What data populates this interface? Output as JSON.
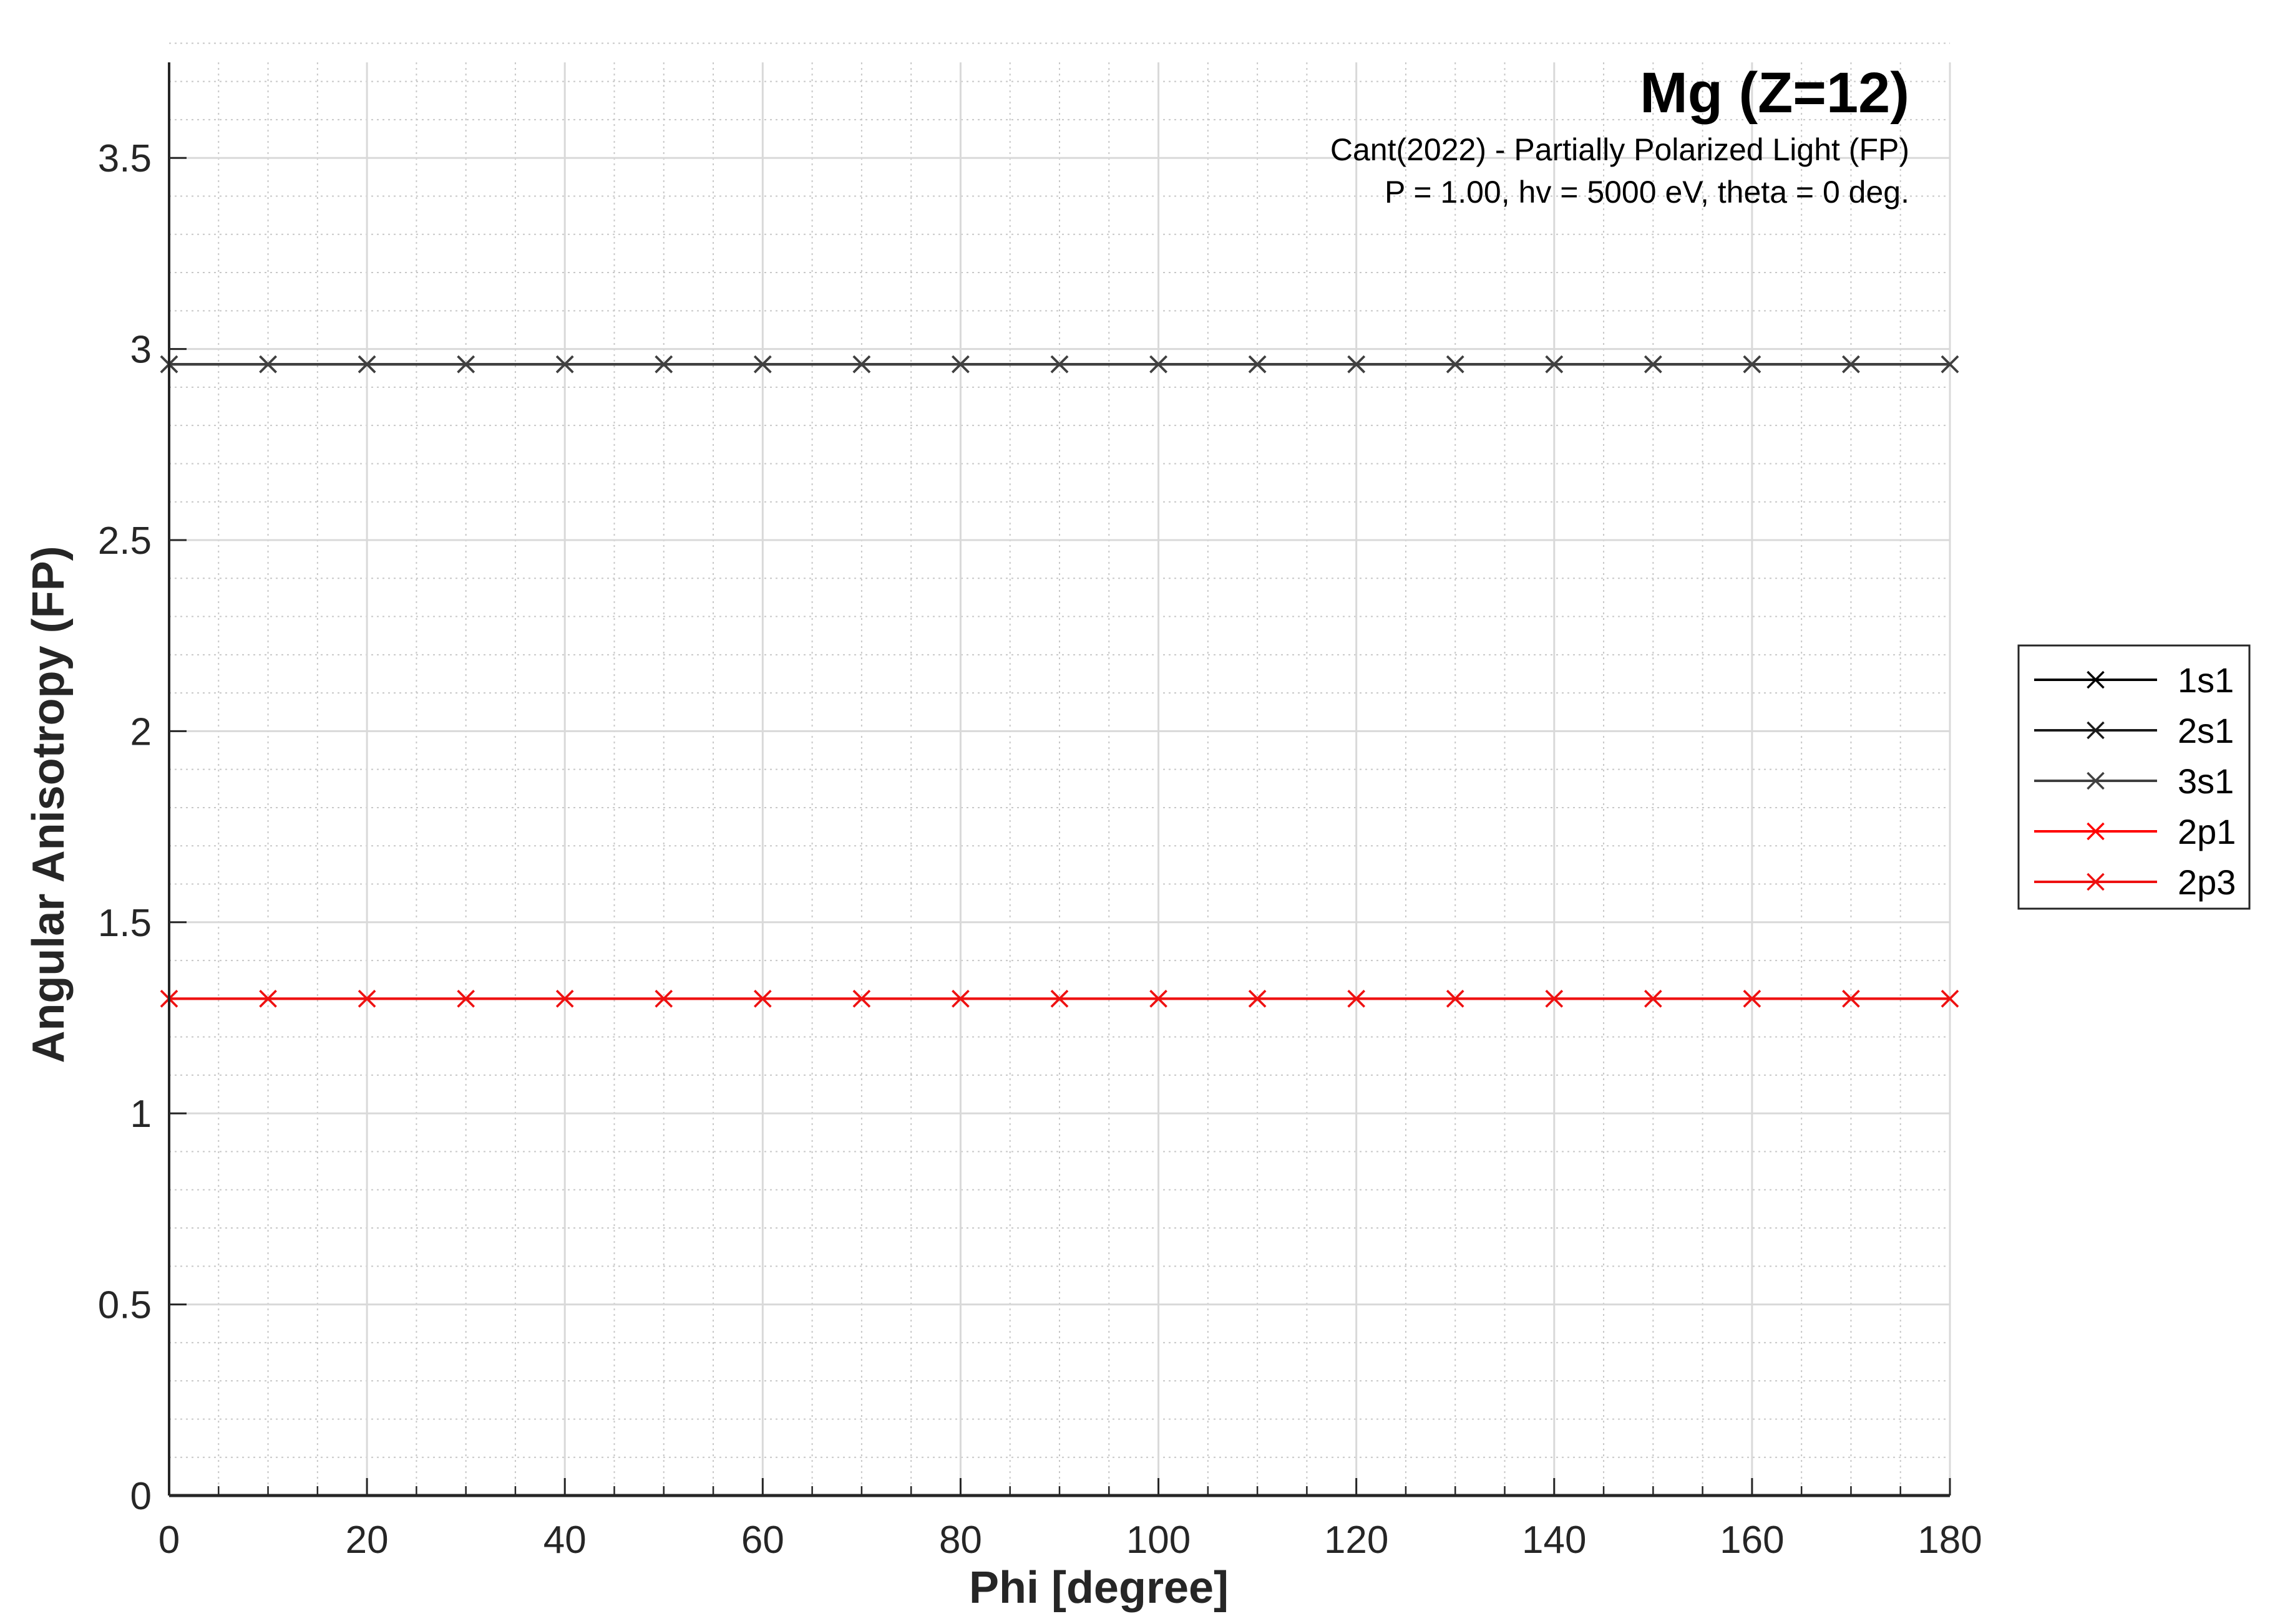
{
  "chart_data": {
    "type": "line",
    "title": "Mg (Z=12)",
    "subtitle_lines": [
      "Cant(2022) - Partially Polarized Light (FP)",
      "P = 1.00, hv = 5000 eV, theta = 0 deg."
    ],
    "xlabel": "Phi [degree]",
    "ylabel": "Angular Anisotropy (FP)",
    "xlim": [
      0,
      180
    ],
    "ylim": [
      0,
      3.75
    ],
    "x_ticks": [
      0,
      20,
      40,
      60,
      80,
      100,
      120,
      140,
      160,
      180
    ],
    "x_tick_labels": [
      "0",
      "20",
      "40",
      "60",
      "80",
      "100",
      "120",
      "140",
      "160",
      "180"
    ],
    "y_ticks": [
      0,
      0.5,
      1,
      1.5,
      2,
      2.5,
      3,
      3.5
    ],
    "y_tick_labels": [
      "0",
      "0.5",
      "1",
      "1.5",
      "2",
      "2.5",
      "3",
      "3.5"
    ],
    "grid": "major and minor",
    "legend_position": "outside right",
    "marker": "x",
    "x": [
      0,
      10,
      20,
      30,
      40,
      50,
      60,
      70,
      80,
      90,
      100,
      110,
      120,
      130,
      140,
      150,
      160,
      170,
      180
    ],
    "series": [
      {
        "name": "1s1",
        "color": "#000000",
        "values": [
          2.96,
          2.96,
          2.96,
          2.96,
          2.96,
          2.96,
          2.96,
          2.96,
          2.96,
          2.96,
          2.96,
          2.96,
          2.96,
          2.96,
          2.96,
          2.96,
          2.96,
          2.96,
          2.96
        ]
      },
      {
        "name": "2s1",
        "color": "#1a1a1a",
        "values": [
          2.96,
          2.96,
          2.96,
          2.96,
          2.96,
          2.96,
          2.96,
          2.96,
          2.96,
          2.96,
          2.96,
          2.96,
          2.96,
          2.96,
          2.96,
          2.96,
          2.96,
          2.96,
          2.96
        ]
      },
      {
        "name": "3s1",
        "color": "#404040",
        "values": [
          2.96,
          2.96,
          2.96,
          2.96,
          2.96,
          2.96,
          2.96,
          2.96,
          2.96,
          2.96,
          2.96,
          2.96,
          2.96,
          2.96,
          2.96,
          2.96,
          2.96,
          2.96,
          2.96
        ]
      },
      {
        "name": "2p1",
        "color": "#ff0000",
        "values": [
          1.3,
          1.3,
          1.3,
          1.3,
          1.3,
          1.3,
          1.3,
          1.3,
          1.3,
          1.3,
          1.3,
          1.3,
          1.3,
          1.3,
          1.3,
          1.3,
          1.3,
          1.3,
          1.3
        ]
      },
      {
        "name": "2p3",
        "color": "#ee1111",
        "values": [
          1.3,
          1.3,
          1.3,
          1.3,
          1.3,
          1.3,
          1.3,
          1.3,
          1.3,
          1.3,
          1.3,
          1.3,
          1.3,
          1.3,
          1.3,
          1.3,
          1.3,
          1.3,
          1.3
        ]
      }
    ]
  }
}
